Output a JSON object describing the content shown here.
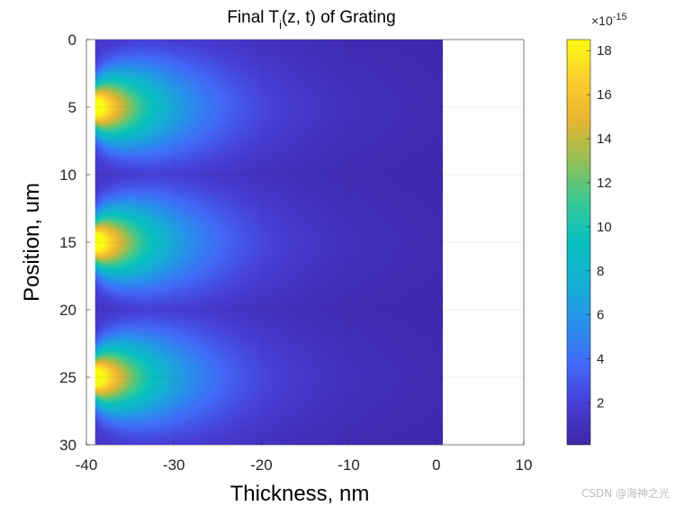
{
  "chart_data": {
    "type": "heatmap",
    "title": "Final T",
    "title_sub": "i",
    "title_suffix": "(z, t) of Grating",
    "xlabel": "Thickness, nm",
    "ylabel": "Position, um",
    "xlim": [
      -40,
      10
    ],
    "ylim": [
      0,
      30
    ],
    "y_reversed": true,
    "xticks": [
      -40,
      -30,
      -20,
      -10,
      0,
      10
    ],
    "yticks": [
      0,
      5,
      10,
      15,
      20,
      25,
      30
    ],
    "grid": true,
    "data_extent": {
      "x": [
        -39,
        1
      ],
      "y": [
        0,
        30
      ]
    },
    "peak_positions": [
      5,
      15,
      25
    ],
    "grating_period": 10,
    "peak_value": 18.5,
    "min_value": 0.1,
    "colormap": "parula",
    "colorbar": {
      "location": "right",
      "ticks": [
        2,
        4,
        6,
        8,
        10,
        12,
        14,
        16,
        18
      ],
      "range": [
        0.1,
        18.5
      ],
      "exponent_base": "×10",
      "exponent_power": "-15"
    }
  },
  "watermark": "CSDN @海神之光"
}
